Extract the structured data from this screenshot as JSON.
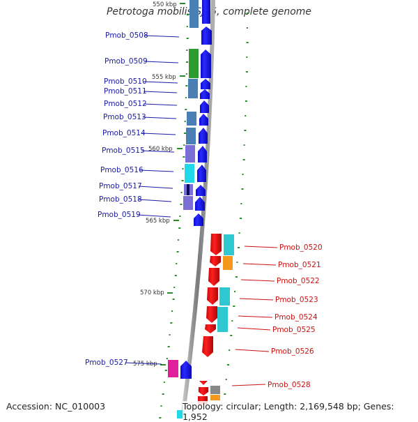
{
  "title": "Petrotoga mobilis SJ95, complete genome",
  "footer": {
    "accession": "Accession: NC_010003",
    "info": "Topology: circular; Length: 2,169,548 bp; Genes: 1,952"
  },
  "kbp_ticks": [
    "550 kbp",
    "555 kbp",
    "560 kbp",
    "565 kbp",
    "570 kbp",
    "575 kbp"
  ],
  "forward_genes": [
    "Pmob_0508",
    "Pmob_0509",
    "Pmob_0510",
    "Pmob_0511",
    "Pmob_0512",
    "Pmob_0513",
    "Pmob_0514",
    "Pmob_0515",
    "Pmob_0516",
    "Pmob_0517",
    "Pmob_0518",
    "Pmob_0519",
    "Pmob_0527"
  ],
  "reverse_genes": [
    "Pmob_0520",
    "Pmob_0521",
    "Pmob_0522",
    "Pmob_0523",
    "Pmob_0524",
    "Pmob_0525",
    "Pmob_0526",
    "Pmob_0528"
  ],
  "colors": {
    "forward_gene": "#1010e6",
    "reverse_gene": "#e61010",
    "backbone": "#8a8a8a",
    "tick": "#2a8a2a",
    "cog_steelblue": "#4a7fb5",
    "cog_green": "#2f9a2f",
    "cog_slateblue": "#7b6fd6",
    "cog_cyan": "#20d8e8",
    "cog_teal": "#30c8d0",
    "cog_orange": "#f39a1e",
    "cog_magenta": "#e0209a",
    "cog_gray": "#888888"
  }
}
